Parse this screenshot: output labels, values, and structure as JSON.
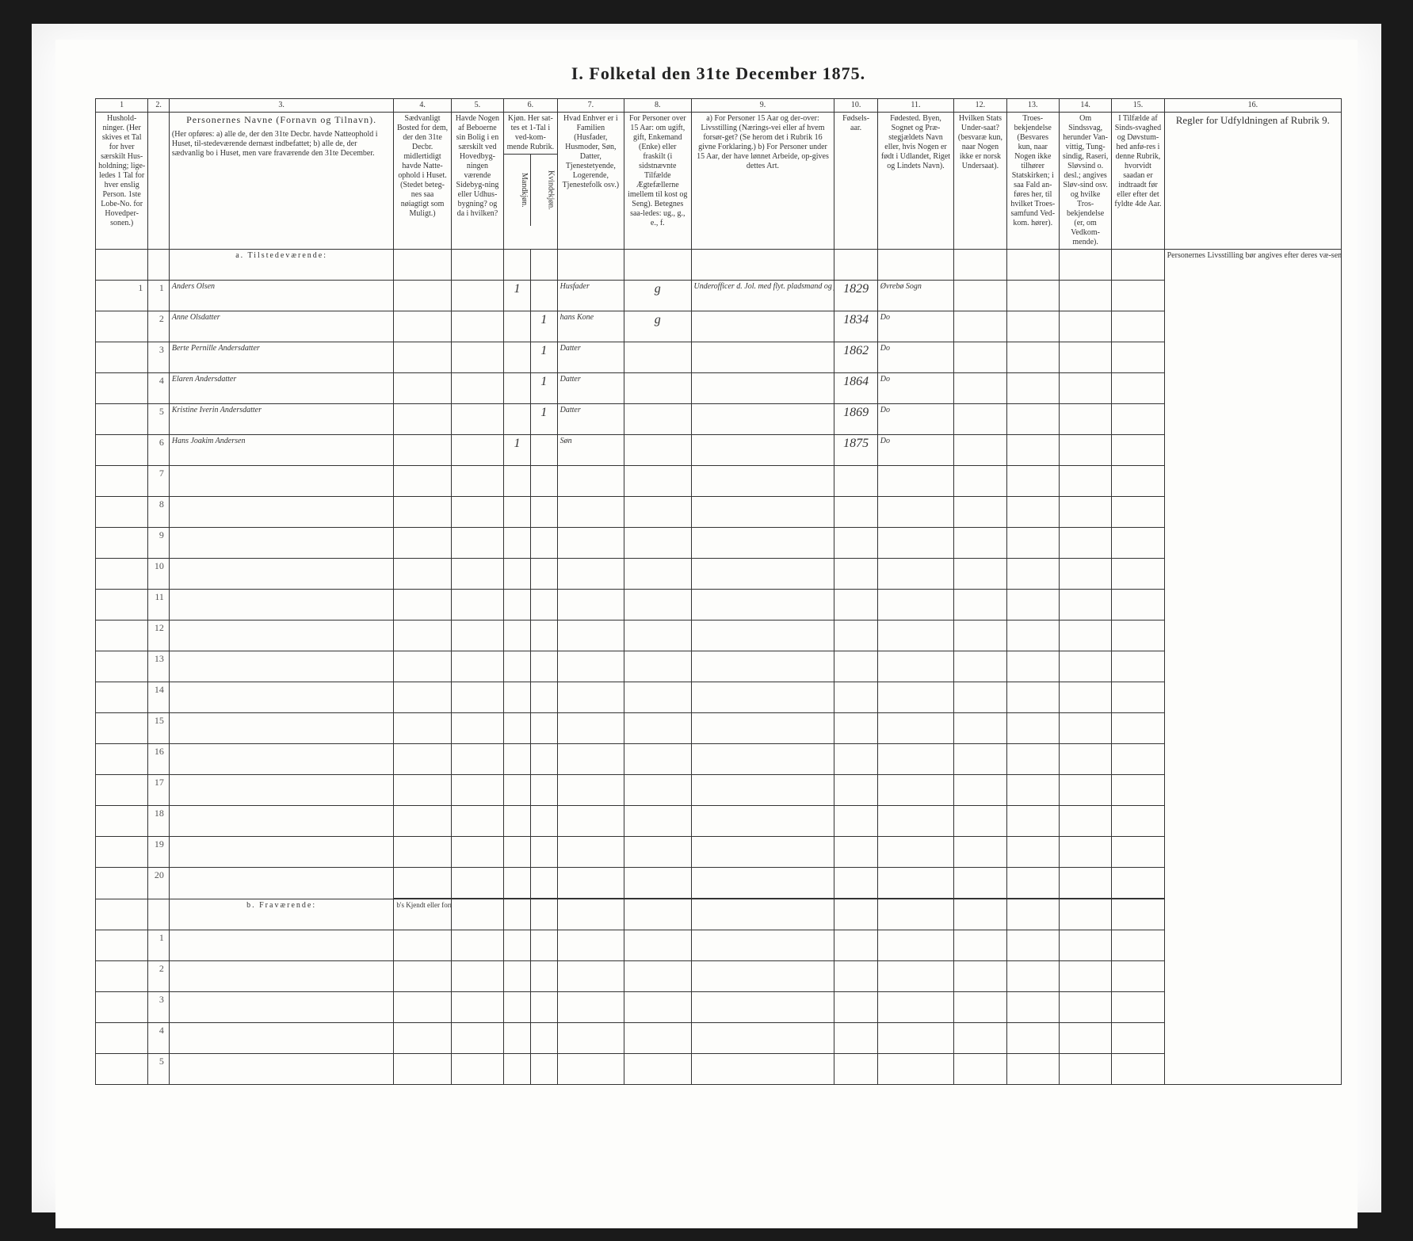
{
  "title": "I. Folketal den 31te December 1875.",
  "colnums": [
    "1",
    "2.",
    "3.",
    "4.",
    "5.",
    "6.",
    "7.",
    "8.",
    "9.",
    "10.",
    "11.",
    "12.",
    "13.",
    "14.",
    "15.",
    "16."
  ],
  "headers": {
    "c1": "Hushold-\nninger.\n(Her skives et Tal for hver særskilt Hus-holdning; lige-ledes 1 Tal for hver enslig Person. 1ste Lobe-No. for Hovedper-sonen.)",
    "c3_title": "Personernes Navne (Fornavn og Tilnavn).",
    "c3_sub": "(Her opføres:\na) alle de, der den 31te Decbr. havde Natteophold i Huset, til-stedeværende dernæst indbefattet;\nb) alle de, der sædvanlig bo i Huset, men vare fraværende den 31te December.",
    "c4": "Sædvanligt Bosted for dem, der den 31te Decbr. midlertidigt havde Natte-ophold i Huset. (Stedet beteg-nes saa nøiagtigt som Muligt.)",
    "c5": "Havde Nogen af Beboerne sin Bolig i en særskilt ved Hovedbyg-ningen værende Sidebyg-ning eller Udhus-bygning? og da i hvilken?",
    "c6": "Kjøn. Her sat-tes et 1-Tal i ved-kom-mende Rubrik.",
    "c6a": "Mandkjøn.",
    "c6b": "Kvindekjøn.",
    "c7": "Hvad Enhver er i Familien\n(Husfader, Husmoder, Søn, Datter, Tjenestetyende, Logerende, Tjenestefolk osv.)",
    "c8": "For Personer over 15 Aar: om ugift, gift, Enkemand (Enke) eller fraskilt (i sidstnævnte Tilfælde Ægtefællerne imellem til kost og Seng).\nBetegnes saa-ledes: ug., g., e., f.",
    "c9": "a) For Personer 15 Aar og der-over: Livsstilling (Nærings-vei eller af hvem forsør-get? (Se herom det i Rubrik 16 givne Forklaring.)\nb) For Personer under 15 Aar, der have lønnet Arbeide, op-gives dettes Art.",
    "c10": "Fødsels-aar.",
    "c11": "Fødested.\nByen, Sognet og Præ-stegjældets Navn eller, hvis Nogen er født i Udlandet, Riget og Lindets Navn).",
    "c12": "Hvilken Stats Under-saat?\n(besvaræ kun, naar Nogen ikke er norsk Undersaat).",
    "c13": "Troes-bekjendelse (Besvares kun, naar Nogen ikke tilhører Statskirken; i saa Fald an-føres her, til hvilket Troes-samfund Ved-kom. hører).",
    "c14": "Om Sindssvag, herunder Van-vittig, Tung-sindig, Raseri, Sløvsind o. desl.; angives Sløv-sind osv. og hvilke Tros-bekjendelse (er, om Vedkom-mende).",
    "c15": "I Tilfælde af Sinds-svaghed og Døvstum-hed anfø-res i denne Rubrik, hvorvidt saadan er indtraadt før eller efter det fyldte 4de Aar.",
    "c16": "Regler for Udfyldningen\naf\nRubrik 9."
  },
  "section_a": "a. Tilstedeværende:",
  "section_b": "b. Fraværende:",
  "section_b_sub": "b's Kjendt eller formodet Opholdssted.",
  "rows": [
    {
      "n": "1",
      "name": "Anders Olsen",
      "sex_m": "1",
      "sex_f": "",
      "fam": "Husfader",
      "civ": "g",
      "occ": "Underofficer d. Jol. med flyt. pladsmand og jords",
      "year": "1829",
      "place": "Øvrebø Sogn"
    },
    {
      "n": "2",
      "name": "Anne Olsdatter",
      "sex_m": "",
      "sex_f": "1",
      "fam": "hans Kone",
      "civ": "g",
      "occ": "",
      "year": "1834",
      "place": "Do"
    },
    {
      "n": "3",
      "name": "Berte Pernille Andersdatter",
      "sex_m": "",
      "sex_f": "1",
      "fam": "Datter",
      "civ": "",
      "occ": "",
      "year": "1862",
      "place": "Do"
    },
    {
      "n": "4",
      "name": "Elaren Andersdatter",
      "sex_m": "",
      "sex_f": "1",
      "fam": "Datter",
      "civ": "",
      "occ": "",
      "year": "1864",
      "place": "Do"
    },
    {
      "n": "5",
      "name": "Kristine Iverin Andersdatter",
      "sex_m": "",
      "sex_f": "1",
      "fam": "Datter",
      "civ": "",
      "occ": "",
      "year": "1869",
      "place": "Do"
    },
    {
      "n": "6",
      "name": "Hans Joakim Andersen",
      "sex_m": "1",
      "sex_f": "",
      "fam": "Søn",
      "civ": "",
      "occ": "",
      "year": "1875",
      "place": "Do"
    }
  ],
  "rules_text": "Personernes Livsstilling bør angives efter deres væ-sentlige Beskjæftigelse eller Næringsvei med Udelukkelse af Benævnelser, der kun be-tegne Bekledelse af Ombud, tagne Examina eller an-dre Egenskaber. Personer Skatteyderens Beskjæfti-gelser, der kunne ansees som uvæsentlige, bør kun opføres med dobbelt Livsstilling, naar de ere af saadan Erhvervs-kilde nattes bør; f. Ex. Gaardbru-og Fisker; Skiblreder og Gaardbruger o. s. v. Forøv-rigt bør Stillingen opgives saa bestemt, specielt og nøiagtigt som muligt.\n\nTil nærmere Veiledning an-føres her endel Exempler:\n\nVed Benævnelserne: Arbei-der, Dagarbeider, Inderst, Løskarl, Strandsidder eller lign., bør tilføies det Slags Arbeide, hvormed Vedkom-mende hovedsagelig er syssel-sat; f. Ex. Jordbrug, Tøm-arbeide, Veiarbeide, hvilket Slags Fabrik- eller Hussæl-værksarbeide o. s. v.\n\nVed alle saadanne Tjene-steforhold, som havde op-givet offentligt og privatligt, bør Forholdets Art opgives; f. Ex. ved Regnskabsførere, om de ere ansatte ved en privat eller om de fore en offentlig Indretning og da hvilken; lignende ved Fuld-mægtig, Kontorist, Opsynsmand, Lærer, Ingeniør, Assistent.\n\nOm Gaardbrugere oplyses, hvorvidt de ere Selveiere, Leilændinge eller Forpagtere.\n\nOm Husmænd, hvorvidt de formentlig ernære sig ved Jordbrug eller ved andet Ar-beide, og da af hvad Slags.\n\nOm Haandværkere og an-dre Industridrivende, hvad Slags Industri de drive, samt hvorvidt de drive den selv-stændigt eller ere i andres Tjeneste.\n\nOm Tømmermænd oplyses, hvorvidt de fare tilsøs som Skibstømmermænd, eller ar-beide paa Skibsværfter, eller beskjæftiges ved andet Tøm-mermandsarbeide.\n\nI Henseende til Maskinister og Fyrbødere oplyses, om de fare tilsøs eller ved hvilket Slags Fabrikdrift eller anden Virksomhedsgren de ere an-satte.\n\nVed Smede, Snedkere og andre, der ere ansatte ved Fa-briker og Brug, bør disses Navn opgives.\n\nFor Studenter, Landbrugs-elever, Skoledisciple og an-dre, der ikke forsørge sig selv, bør Forsørgerens Livs-stilling opgives, fornemlig hvis de bo sammen med ham.\n\nFor dem, der have Fattig-understøttelse, oplyses, hvor-vidt de ere helt eller delvis forsørgede, samt i sidste Til-fælde, hvad de forøvrigt er-nære sig ved."
}
